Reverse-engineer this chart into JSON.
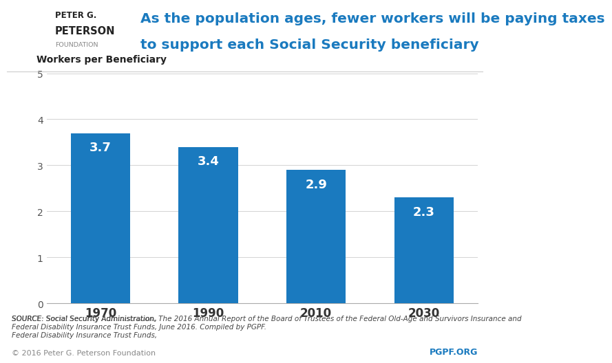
{
  "categories": [
    "1970",
    "1990",
    "2010",
    "2030"
  ],
  "values": [
    3.7,
    3.4,
    2.9,
    2.3
  ],
  "bar_color": "#1a7abf",
  "bar_label_color": "#ffffff",
  "bar_label_fontsize": 13,
  "ylim": [
    0,
    5
  ],
  "yticks": [
    0,
    1,
    2,
    3,
    4,
    5
  ],
  "ylabel_text": "Workers per Beneficiary",
  "ylabel_fontsize": 10,
  "title_line1": "As the population ages, fewer workers will be paying taxes",
  "title_line2": "to support each Social Security beneficiary",
  "title_color": "#1a7abf",
  "title_fontsize": 14.5,
  "source_text": "SOURCE: Social Security Administration, The 2016 Annual Report of the Board of Trustees of the Federal Old-Age and Survivors Insurance and\nFederal Disability Insurance Trust Funds, June 2016. Compiled by PGPF.",
  "source_fontsize": 7.5,
  "copyright_text": "© 2016 Peter G. Peterson Foundation",
  "pgpf_text": "PGPF.ORG",
  "pgpf_color": "#1a7abf",
  "footer_fontsize": 8,
  "background_color": "#ffffff",
  "xtick_fontsize": 12,
  "ytick_fontsize": 10,
  "bar_width": 0.55
}
